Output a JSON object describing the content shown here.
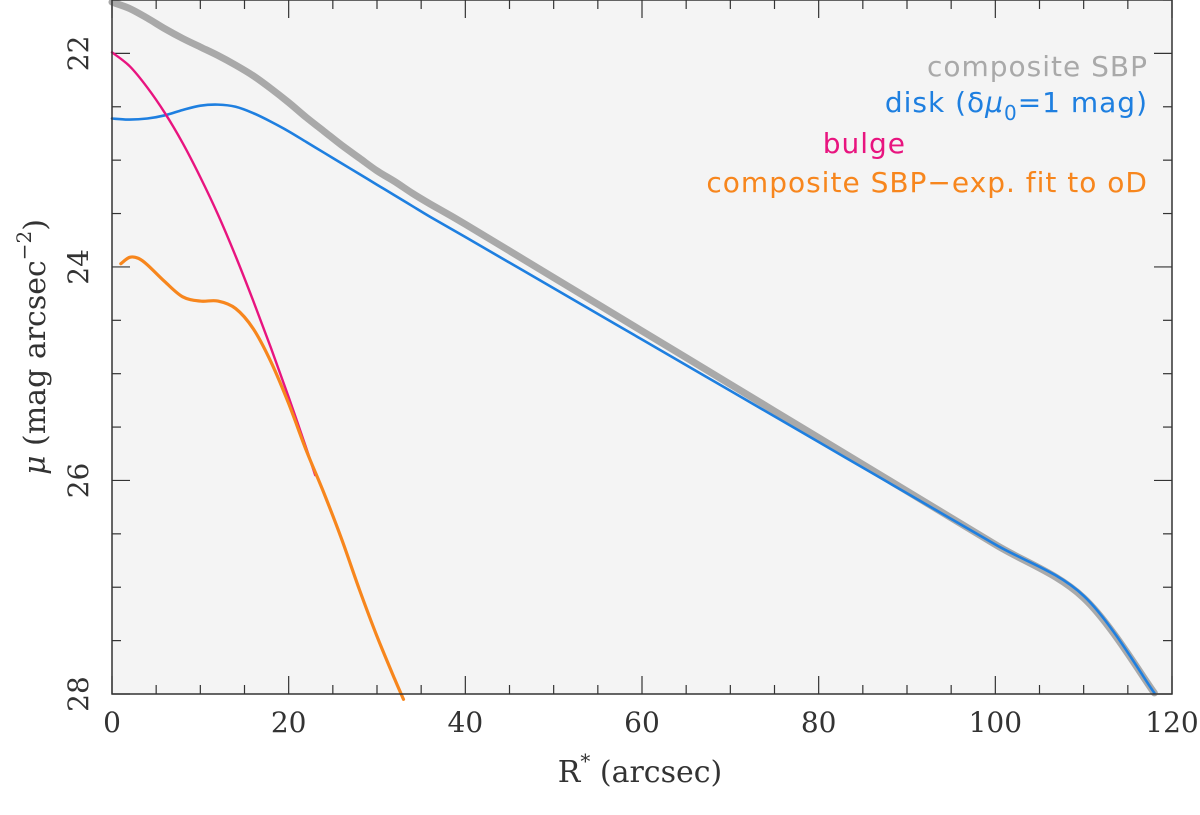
{
  "chart_data": {
    "type": "line",
    "xlabel": {
      "main": "R",
      "sup": "*",
      "rest": " (arcsec)"
    },
    "ylabel": {
      "mu": "μ",
      "pre": " (mag arcsec",
      "sup": "−2",
      "post": ")"
    },
    "xlim": [
      0,
      120
    ],
    "ylim": [
      28,
      21.5
    ],
    "y_inverted": true,
    "x_ticks": [
      0,
      20,
      40,
      60,
      80,
      100,
      120
    ],
    "y_ticks": [
      22,
      24,
      26,
      28
    ],
    "grid": false,
    "legend_position": "top-right",
    "legend": [
      {
        "key": "composite",
        "text": "composite SBP",
        "color": "#a9a9a9"
      },
      {
        "key": "disk",
        "pre": "disk (δ",
        "mu": "μ",
        "sub": "0",
        "post": "=1 mag)",
        "color": "#1e7fe0"
      },
      {
        "key": "bulge",
        "text": "bulge",
        "color": "#e8147f"
      },
      {
        "key": "residual",
        "text": "composite SBP−exp. fit to oD",
        "color": "#f7861d"
      }
    ],
    "series": [
      {
        "key": "composite",
        "color": "#a9a9a9",
        "x": [
          0,
          2,
          4,
          6,
          8,
          10,
          12,
          14,
          16,
          18,
          20,
          22,
          24,
          26,
          28,
          30,
          32,
          34,
          36,
          40,
          50,
          60,
          70,
          80,
          90,
          100,
          110,
          118
        ],
        "y": [
          21.52,
          21.58,
          21.67,
          21.77,
          21.86,
          21.94,
          22.02,
          22.11,
          22.21,
          22.33,
          22.46,
          22.6,
          22.73,
          22.86,
          22.98,
          23.1,
          23.2,
          23.31,
          23.41,
          23.6,
          24.1,
          24.6,
          25.1,
          25.6,
          26.1,
          26.6,
          27.1,
          27.99
        ]
      },
      {
        "key": "disk",
        "color": "#1e7fe0",
        "x": [
          0,
          2,
          4,
          6,
          8,
          10,
          12,
          14,
          16,
          18,
          20,
          22,
          24,
          26,
          28,
          30,
          32,
          34,
          36,
          40,
          50,
          60,
          70,
          80,
          90,
          100,
          110,
          118
        ],
        "y": [
          22.61,
          22.62,
          22.61,
          22.58,
          22.53,
          22.49,
          22.48,
          22.5,
          22.56,
          22.64,
          22.73,
          22.83,
          22.93,
          23.03,
          23.13,
          23.23,
          23.33,
          23.43,
          23.53,
          23.72,
          24.2,
          24.68,
          25.16,
          25.64,
          26.12,
          26.6,
          27.08,
          27.99
        ]
      },
      {
        "key": "bulge",
        "color": "#e8147f",
        "x": [
          0,
          2,
          4,
          6,
          8,
          10,
          12,
          14,
          16,
          18,
          20,
          22,
          23
        ],
        "y": [
          21.99,
          22.12,
          22.32,
          22.56,
          22.84,
          23.16,
          23.51,
          23.9,
          24.32,
          24.76,
          25.22,
          25.7,
          25.95
        ]
      },
      {
        "key": "residual",
        "color": "#f7861d",
        "x": [
          1,
          2,
          3,
          4,
          6,
          8,
          10,
          12,
          14,
          16,
          18,
          20,
          22,
          24,
          26,
          28,
          30,
          32,
          33
        ],
        "y": [
          23.97,
          23.91,
          23.92,
          23.98,
          24.14,
          24.28,
          24.32,
          24.32,
          24.39,
          24.58,
          24.89,
          25.28,
          25.72,
          26.12,
          26.55,
          27.02,
          27.46,
          27.86,
          28.05
        ]
      }
    ]
  }
}
